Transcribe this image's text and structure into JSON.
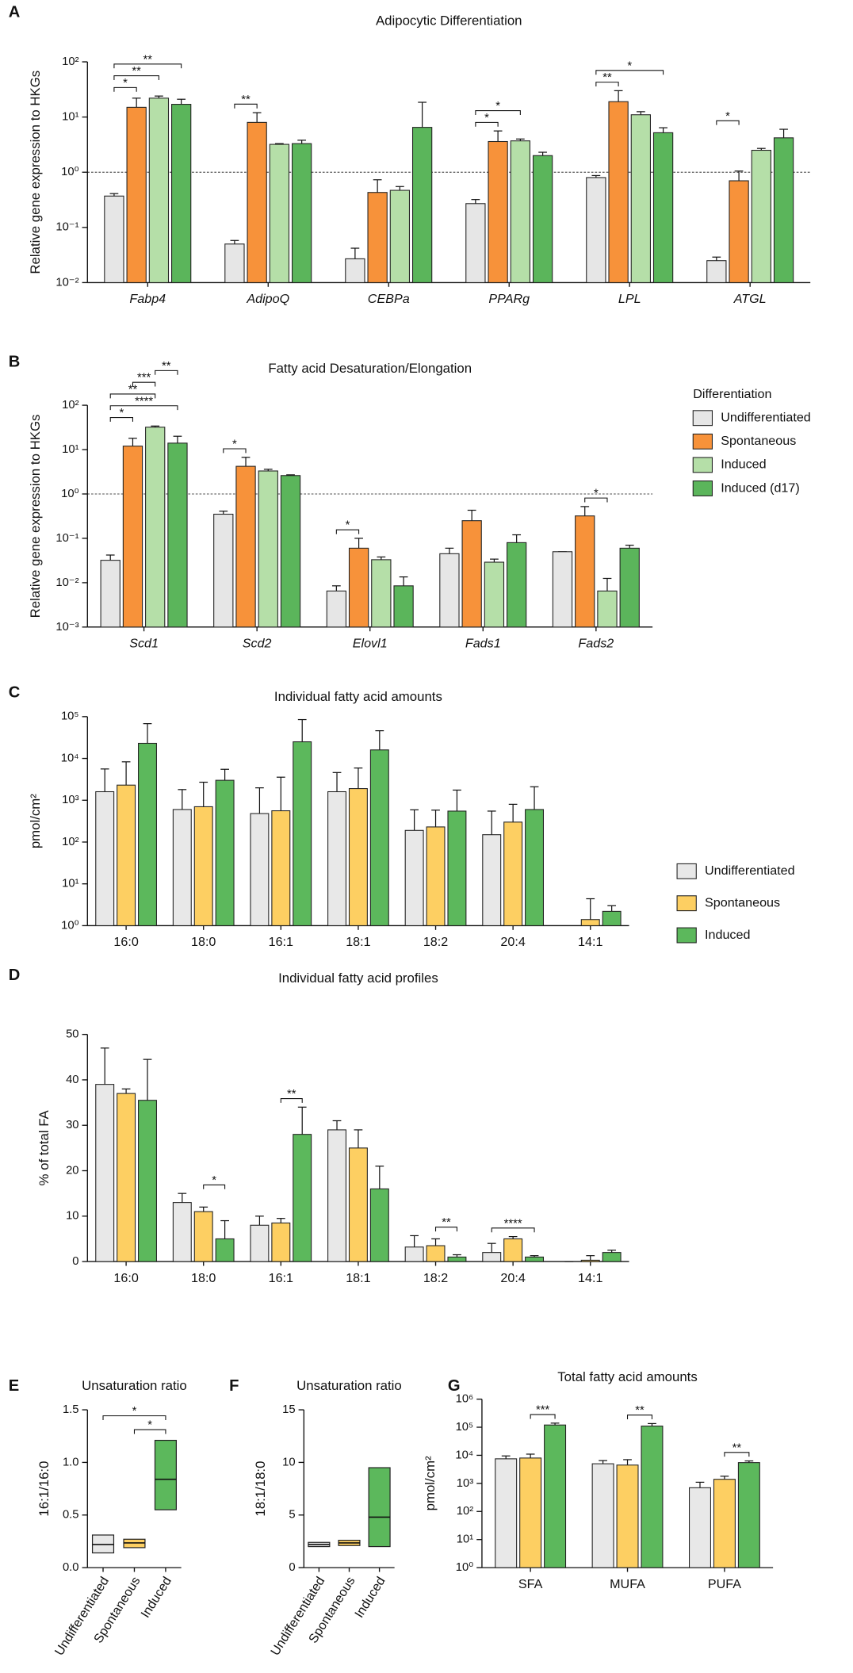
{
  "chart_data": [
    {
      "panel": "A",
      "type": "bar",
      "title": "Adipocytic Differentiation",
      "ylabel": "Relative gene expression to HKGs",
      "log": true,
      "category_style": "italic",
      "reference_line": 1,
      "ylim": [
        0.01,
        100
      ],
      "yticks": [
        {
          "value": 0.01,
          "label": "10⁻²"
        },
        {
          "value": 0.1,
          "label": "10⁻¹"
        },
        {
          "value": 1,
          "label": "10⁰"
        },
        {
          "value": 10,
          "label": "10¹"
        },
        {
          "value": 100,
          "label": "10²"
        }
      ],
      "categories": [
        "Fabp4",
        "AdipoQ",
        "CEBPa",
        "PPARg",
        "LPL",
        "ATGL"
      ],
      "series": [
        {
          "name": "Undifferentiated",
          "color": "#e6e6e6",
          "values": [
            0.37,
            0.05,
            0.027,
            0.27,
            0.8,
            0.025
          ],
          "errors": [
            0.04,
            0.008,
            0.015,
            0.05,
            0.07,
            0.004
          ]
        },
        {
          "name": "Spontaneous",
          "color": "#f7923a",
          "values": [
            15,
            8,
            0.43,
            3.6,
            19,
            0.7
          ],
          "errors": [
            7,
            4,
            0.3,
            2,
            11,
            0.35
          ]
        },
        {
          "name": "Induced",
          "color": "#b5dfa8",
          "values": [
            22,
            3.2,
            0.47,
            3.7,
            11,
            2.5
          ],
          "errors": [
            2,
            0.1,
            0.08,
            0.3,
            1.5,
            0.2
          ]
        },
        {
          "name": "Induced (d17)",
          "color": "#5bb55b",
          "values": [
            17,
            3.3,
            6.5,
            2,
            5.2,
            4.2
          ],
          "errors": [
            4,
            0.5,
            12,
            0.3,
            1.2,
            1.8
          ]
        }
      ],
      "annotations": [
        {
          "text": "*",
          "category": "Fabp4",
          "from": "Undifferentiated",
          "to": "Spontaneous"
        },
        {
          "text": "**",
          "category": "Fabp4",
          "from": "Undifferentiated",
          "to": "Induced"
        },
        {
          "text": "**",
          "category": "Fabp4",
          "from": "Undifferentiated",
          "to": "Induced (d17)"
        },
        {
          "text": "**",
          "category": "AdipoQ",
          "from": "Undifferentiated",
          "to": "Spontaneous"
        },
        {
          "text": "*",
          "category": "PPARg",
          "from": "Undifferentiated",
          "to": "Spontaneous"
        },
        {
          "text": "*",
          "category": "PPARg",
          "from": "Undifferentiated",
          "to": "Induced"
        },
        {
          "text": "**",
          "category": "LPL",
          "from": "Undifferentiated",
          "to": "Spontaneous"
        },
        {
          "text": "*",
          "category": "LPL",
          "from": "Undifferentiated",
          "to": "Induced (d17)"
        },
        {
          "text": "*",
          "category": "ATGL",
          "from": "Undifferentiated",
          "to": "Spontaneous"
        }
      ]
    },
    {
      "panel": "B",
      "type": "bar",
      "title": "Fatty acid Desaturation/Elongation",
      "ylabel": "Relative gene expression to HKGs",
      "log": true,
      "category_style": "italic",
      "reference_line": 1,
      "legend": "right",
      "legend_title": "Differentiation",
      "ylim": [
        0.001,
        100
      ],
      "yticks": [
        {
          "value": 0.001,
          "label": "10⁻³"
        },
        {
          "value": 0.01,
          "label": "10⁻²"
        },
        {
          "value": 0.1,
          "label": "10⁻¹"
        },
        {
          "value": 1,
          "label": "10⁰"
        },
        {
          "value": 10,
          "label": "10¹"
        },
        {
          "value": 100,
          "label": "10²"
        }
      ],
      "categories": [
        "Scd1",
        "Scd2",
        "Elovl1",
        "Fads1",
        "Fads2"
      ],
      "series": [
        {
          "name": "Undifferentiated",
          "color": "#e6e6e6",
          "values": [
            0.032,
            0.35,
            0.0065,
            0.045,
            0.05
          ],
          "errors": [
            0.01,
            0.06,
            0.002,
            0.015,
            0
          ]
        },
        {
          "name": "Spontaneous",
          "color": "#f7923a",
          "values": [
            12,
            4.2,
            0.06,
            0.25,
            0.32
          ],
          "errors": [
            6,
            2.5,
            0.04,
            0.18,
            0.2
          ]
        },
        {
          "name": "Induced",
          "color": "#b5dfa8",
          "values": [
            32,
            3.3,
            0.033,
            0.029,
            0.0065
          ],
          "errors": [
            2,
            0.3,
            0.005,
            0.005,
            0.006
          ]
        },
        {
          "name": "Induced (d17)",
          "color": "#5bb55b",
          "values": [
            14,
            2.6,
            0.0085,
            0.08,
            0.06
          ],
          "errors": [
            6,
            0.1,
            0.005,
            0.04,
            0.01
          ]
        }
      ],
      "annotations": [
        {
          "text": "*",
          "category": "Scd1",
          "from": "Undifferentiated",
          "to": "Spontaneous"
        },
        {
          "text": "****",
          "category": "Scd1",
          "from": "Undifferentiated",
          "to": "Induced (d17)"
        },
        {
          "text": "**",
          "category": "Scd1",
          "from": "Undifferentiated",
          "to": "Induced"
        },
        {
          "text": "***",
          "category": "Scd1",
          "from": "Spontaneous",
          "to": "Induced"
        },
        {
          "text": "**",
          "category": "Scd1",
          "from": "Induced",
          "to": "Induced (d17)"
        },
        {
          "text": "*",
          "category": "Scd2",
          "from": "Undifferentiated",
          "to": "Spontaneous"
        },
        {
          "text": "*",
          "category": "Elovl1",
          "from": "Undifferentiated",
          "to": "Spontaneous"
        },
        {
          "text": "*",
          "category": "Fads2",
          "from": "Spontaneous",
          "to": "Induced"
        }
      ]
    },
    {
      "panel": "C",
      "type": "bar",
      "title": "Individual fatty acid amounts",
      "ylabel": "pmol/cm²",
      "log": true,
      "legend": "right",
      "ylim": [
        1,
        100000
      ],
      "yticks": [
        {
          "value": 1,
          "label": "10⁰"
        },
        {
          "value": 10,
          "label": "10¹"
        },
        {
          "value": 100,
          "label": "10²"
        },
        {
          "value": 1000,
          "label": "10³"
        },
        {
          "value": 10000,
          "label": "10⁴"
        },
        {
          "value": 100000,
          "label": "10⁵"
        }
      ],
      "categories": [
        "16:0",
        "18:0",
        "16:1",
        "18:1",
        "18:2",
        "20:4",
        "14:1"
      ],
      "series": [
        {
          "name": "Undifferentiated",
          "color": "#e8e8e8",
          "values": [
            1600,
            600,
            480,
            1600,
            190,
            150,
            null
          ],
          "errors": [
            4000,
            1200,
            1500,
            3000,
            400,
            400,
            null
          ]
        },
        {
          "name": "Spontaneous",
          "color": "#fdcf62",
          "values": [
            2300,
            700,
            560,
            1900,
            230,
            300,
            1.4
          ],
          "errors": [
            6000,
            2000,
            3000,
            4000,
            350,
            500,
            3
          ]
        },
        {
          "name": "Induced",
          "color": "#5cb85c",
          "values": [
            23000,
            3000,
            25000,
            16000,
            550,
            600,
            2.2
          ],
          "errors": [
            45000,
            2500,
            60000,
            30000,
            1200,
            1500,
            0.8
          ]
        }
      ]
    },
    {
      "panel": "D",
      "type": "bar",
      "title": "Individual fatty acid profiles",
      "ylabel": "% of total FA",
      "log": false,
      "ylim": [
        0,
        50
      ],
      "yticks": [
        0,
        10,
        20,
        30,
        40,
        50
      ],
      "categories": [
        "16:0",
        "18:0",
        "16:1",
        "18:1",
        "18:2",
        "20:4",
        "14:1"
      ],
      "series": [
        {
          "name": "Undifferentiated",
          "color": "#e8e8e8",
          "values": [
            39,
            13,
            8,
            29,
            3.2,
            2,
            0
          ],
          "errors": [
            8,
            2,
            2,
            2,
            2.5,
            2,
            0
          ]
        },
        {
          "name": "Spontaneous",
          "color": "#fdcf62",
          "values": [
            37,
            11,
            8.5,
            25,
            3.5,
            5,
            0.3
          ],
          "errors": [
            1,
            1,
            1,
            4,
            1.5,
            0.5,
            1
          ]
        },
        {
          "name": "Induced",
          "color": "#5cb85c",
          "values": [
            35.5,
            5,
            28,
            16,
            1,
            1,
            2
          ],
          "errors": [
            9,
            4,
            6,
            5,
            0.5,
            0.3,
            0.5
          ]
        }
      ],
      "annotations": [
        {
          "text": "*",
          "category": "18:0",
          "from": "Spontaneous",
          "to": "Induced"
        },
        {
          "text": "**",
          "category": "16:1",
          "from": "Spontaneous",
          "to": "Induced"
        },
        {
          "text": "**",
          "category": "18:2",
          "from": "Spontaneous",
          "to": "Induced"
        },
        {
          "text": "****",
          "category": "20:4",
          "from": "Undifferentiated",
          "to": "Induced"
        }
      ]
    },
    {
      "panel": "E",
      "type": "floating_bar",
      "title": "Unsaturation ratio",
      "ylabel": "16:1/16:0",
      "ylim": [
        0,
        1.5
      ],
      "yticks": [
        {
          "value": 0,
          "label": "0.0"
        },
        0.5,
        {
          "value": 1,
          "label": "1.0"
        },
        1.5
      ],
      "categories": [
        "Undifferentiated",
        "Spontaneous",
        "Induced"
      ],
      "colors": [
        "#e8e8e8",
        "#fdcf62",
        "#5cb85c"
      ],
      "low": [
        0.14,
        0.19,
        0.55
      ],
      "high": [
        0.31,
        0.27,
        1.21
      ],
      "mean": [
        0.22,
        0.235,
        0.84
      ],
      "annotations": [
        {
          "text": "*",
          "from": "Spontaneous",
          "to": "Induced"
        },
        {
          "text": "*",
          "from": "Undifferentiated",
          "to": "Induced"
        }
      ]
    },
    {
      "panel": "F",
      "type": "floating_bar",
      "title": "Unsaturation ratio",
      "ylabel": "18:1/18:0",
      "ylim": [
        0,
        15
      ],
      "yticks": [
        0,
        5,
        10,
        15
      ],
      "categories": [
        "Undifferentiated",
        "Spontaneous",
        "Induced"
      ],
      "colors": [
        "#e8e8e8",
        "#fdcf62",
        "#5cb85c"
      ],
      "low": [
        2.0,
        2.1,
        2.0
      ],
      "high": [
        2.4,
        2.6,
        9.5
      ],
      "mean": [
        2.2,
        2.35,
        4.8
      ]
    },
    {
      "panel": "G",
      "type": "bar",
      "title": "Total fatty acid amounts",
      "ylabel": "pmol/cm²",
      "log": true,
      "ylim": [
        1,
        1000000
      ],
      "yticks": [
        {
          "value": 1,
          "label": "10⁰"
        },
        {
          "value": 10,
          "label": "10¹"
        },
        {
          "value": 100,
          "label": "10²"
        },
        {
          "value": 1000,
          "label": "10³"
        },
        {
          "value": 10000,
          "label": "10⁴"
        },
        {
          "value": 100000,
          "label": "10⁵"
        },
        {
          "value": 1000000,
          "label": "10⁶"
        }
      ],
      "categories": [
        "SFA",
        "MUFA",
        "PUFA"
      ],
      "series": [
        {
          "name": "Undifferentiated",
          "color": "#e8e8e8",
          "values": [
            7500,
            5000,
            700
          ],
          "errors": [
            2000,
            1500,
            400
          ]
        },
        {
          "name": "Spontaneous",
          "color": "#fdcf62",
          "values": [
            8000,
            4500,
            1400
          ],
          "errors": [
            3000,
            2500,
            400
          ]
        },
        {
          "name": "Induced",
          "color": "#5cb85c",
          "values": [
            120000,
            110000,
            5500
          ],
          "errors": [
            20000,
            25000,
            800
          ]
        }
      ],
      "annotations": [
        {
          "text": "***",
          "category": "SFA",
          "from": "Spontaneous",
          "to": "Induced"
        },
        {
          "text": "**",
          "category": "MUFA",
          "from": "Spontaneous",
          "to": "Induced"
        },
        {
          "text": "**",
          "category": "PUFA",
          "from": "Spontaneous",
          "to": "Induced"
        }
      ]
    }
  ]
}
